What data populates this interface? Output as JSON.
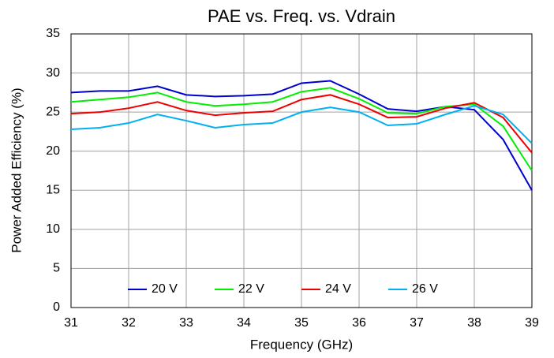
{
  "chart_data": {
    "type": "line",
    "title": "PAE vs. Freq. vs. Vdrain",
    "x_label": "Frequency (GHz)",
    "y_label": "Power Added Efficiency (%)",
    "x": [
      31,
      31.5,
      32,
      32.5,
      33,
      33.5,
      34,
      34.5,
      35,
      35.5,
      36,
      36.5,
      37,
      37.5,
      38,
      38.5,
      39
    ],
    "series": [
      {
        "name": "20 V",
        "color": "#0000cc",
        "values": [
          27.5,
          27.7,
          27.7,
          28.3,
          27.2,
          27.0,
          27.1,
          27.3,
          28.7,
          29.0,
          27.3,
          25.4,
          25.1,
          25.7,
          25.3,
          21.5,
          15.0
        ]
      },
      {
        "name": "22 V",
        "color": "#00ee00",
        "values": [
          26.3,
          26.6,
          26.9,
          27.5,
          26.3,
          25.8,
          26.0,
          26.3,
          27.6,
          28.1,
          26.7,
          24.9,
          24.8,
          25.7,
          26.0,
          23.2,
          17.5
        ]
      },
      {
        "name": "24 V",
        "color": "#ee0000",
        "values": [
          24.8,
          25.0,
          25.5,
          26.3,
          25.2,
          24.6,
          24.9,
          25.1,
          26.6,
          27.2,
          26.0,
          24.3,
          24.4,
          25.5,
          26.2,
          24.3,
          19.8
        ]
      },
      {
        "name": "26 V",
        "color": "#00b0f0",
        "values": [
          22.8,
          23.0,
          23.6,
          24.7,
          23.9,
          23.0,
          23.4,
          23.6,
          25.0,
          25.6,
          25.0,
          23.3,
          23.5,
          24.7,
          25.8,
          24.7,
          21.0
        ]
      }
    ],
    "xlim": [
      31,
      39
    ],
    "xticks": [
      31,
      32,
      33,
      34,
      35,
      36,
      37,
      38,
      39
    ],
    "ylim": [
      0,
      35
    ],
    "yticks": [
      0,
      5,
      10,
      15,
      20,
      25,
      30,
      35
    ],
    "grid": true,
    "legend": "bottom"
  }
}
